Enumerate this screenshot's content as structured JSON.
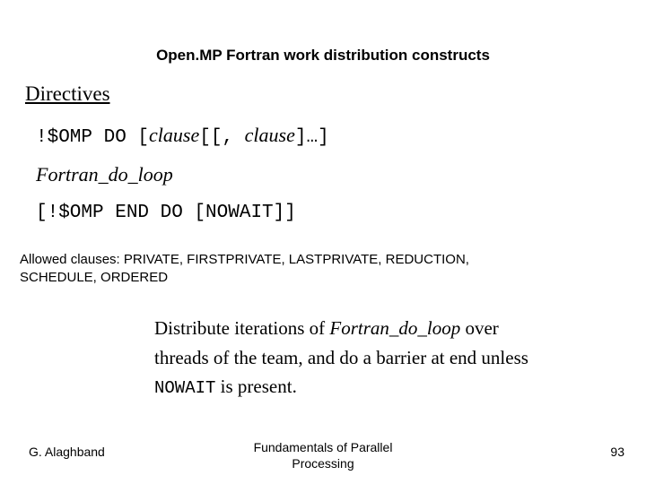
{
  "title": "Open.MP Fortran work distribution constructs",
  "directives_heading": "Directives",
  "syntax": {
    "line1_a": "!$OMP DO  [",
    "line1_clause1": "clause",
    "line1_b": "[[,  ",
    "line1_clause2": "clause",
    "line1_c": "]…]",
    "line2_floop": "Fortran_do_loop",
    "line3": "[!$OMP END DO  [NOWAIT]]"
  },
  "allowed_clauses_line1": "Allowed clauses: PRIVATE, FIRSTPRIVATE, LASTPRIVATE, REDUCTION,",
  "allowed_clauses_line2": "SCHEDULE, ORDERED",
  "description": {
    "part1": "Distribute iterations of ",
    "floop": "Fortran_do_loop",
    "part2": " over threads of the team, and do a barrier at end unless ",
    "nowait": "NOWAIT",
    "part3": " is present."
  },
  "footer": {
    "author": "G. Alaghband",
    "center_line1": "Fundamentals of Parallel",
    "center_line2": "Processing",
    "page": "93"
  },
  "colors": {
    "background": "#ffffff",
    "text": "#000000"
  }
}
